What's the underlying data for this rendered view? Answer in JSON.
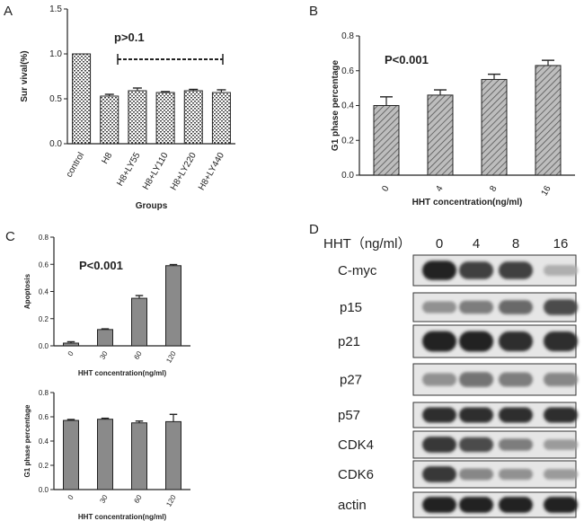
{
  "panel_letters": {
    "a": "A",
    "b": "B",
    "c": "C",
    "d": "D"
  },
  "chart_data": [
    {
      "panel": "A",
      "type": "bar",
      "title": "",
      "xlabel": "Groups",
      "ylabel": "Sur vival(%)",
      "categories": [
        "control",
        "H8",
        "H8+LY55",
        "H8+LY110",
        "H8+LY220",
        "H8+LY440"
      ],
      "values": [
        1.0,
        0.53,
        0.59,
        0.57,
        0.59,
        0.57
      ],
      "errors": [
        0.0,
        0.02,
        0.03,
        0.01,
        0.015,
        0.03
      ],
      "ylim": [
        0,
        1.5
      ],
      "yticks": [
        "0.0",
        "0.5",
        "1.0",
        "1.5"
      ],
      "annotation": "p>0.1",
      "bar_pattern": "dotted"
    },
    {
      "panel": "B",
      "type": "bar",
      "title": "",
      "xlabel": "HHT concentration(ng/ml)",
      "ylabel": "G1 phase percentage",
      "categories": [
        "0",
        "4",
        "8",
        "16"
      ],
      "values": [
        0.4,
        0.46,
        0.55,
        0.63
      ],
      "errors": [
        0.05,
        0.03,
        0.03,
        0.03
      ],
      "ylim": [
        0,
        0.8
      ],
      "yticks": [
        "0.0",
        "0.2",
        "0.4",
        "0.6",
        "0.8"
      ],
      "annotation": "P<0.001",
      "bar_pattern": "hatched"
    },
    {
      "panel": "C-top",
      "type": "bar",
      "title": "",
      "xlabel": "HHT concentration(ng/ml)",
      "ylabel": "Apoptosis",
      "categories": [
        "0",
        "30",
        "60",
        "120"
      ],
      "values": [
        0.02,
        0.12,
        0.35,
        0.59
      ],
      "errors": [
        0.01,
        0.005,
        0.02,
        0.008
      ],
      "ylim": [
        0,
        0.8
      ],
      "yticks": [
        "0.0",
        "0.2",
        "0.4",
        "0.6",
        "0.8"
      ],
      "annotation": "P<0.001",
      "bar_pattern": "solid-grey"
    },
    {
      "panel": "C-bottom",
      "type": "bar",
      "title": "",
      "xlabel": "HHT concentration(ng/ml)",
      "ylabel": "G1 phase percentage",
      "categories": [
        "0",
        "30",
        "60",
        "120"
      ],
      "values": [
        0.57,
        0.58,
        0.55,
        0.56
      ],
      "errors": [
        0.008,
        0.008,
        0.015,
        0.06
      ],
      "ylim": [
        0,
        0.8
      ],
      "yticks": [
        "0.0",
        "0.2",
        "0.4",
        "0.6",
        "0.8"
      ],
      "annotation": "",
      "bar_pattern": "solid-grey"
    }
  ],
  "western_blot": {
    "header_label": "HHT（ng/ml）",
    "lanes": [
      "0",
      "4",
      "8",
      "16"
    ],
    "proteins": [
      {
        "name": "C-myc",
        "intensities": [
          0.95,
          0.8,
          0.8,
          0.25
        ]
      },
      {
        "name": "p15",
        "intensities": [
          0.4,
          0.5,
          0.6,
          0.75
        ]
      },
      {
        "name": "p21",
        "intensities": [
          0.95,
          0.95,
          0.9,
          0.9
        ]
      },
      {
        "name": "p27",
        "intensities": [
          0.4,
          0.55,
          0.5,
          0.45
        ]
      },
      {
        "name": "p57",
        "intensities": [
          0.9,
          0.9,
          0.9,
          0.9
        ]
      },
      {
        "name": "CDK4",
        "intensities": [
          0.85,
          0.75,
          0.5,
          0.35
        ]
      },
      {
        "name": "CDK6",
        "intensities": [
          0.85,
          0.45,
          0.4,
          0.35
        ]
      },
      {
        "name": "actin",
        "intensities": [
          0.95,
          0.95,
          0.95,
          0.95
        ]
      }
    ]
  }
}
